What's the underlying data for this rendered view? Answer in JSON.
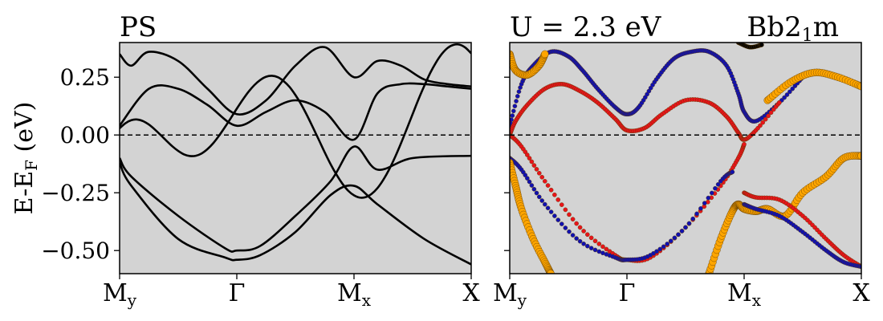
{
  "chart_data": [
    {
      "type": "line",
      "title": "PS",
      "ylabel": "E-E",
      "ylabel_sub": "F",
      "ylabel_unit": " (eV)",
      "ylim": [
        -0.6,
        0.4
      ],
      "xlim": [
        0,
        3
      ],
      "yticks": [
        0.25,
        0.0,
        -0.25,
        -0.5
      ],
      "ytick_labels": [
        "0.25",
        "0.00",
        "−0.25",
        "−0.50"
      ],
      "xticks": [
        {
          "x": 0,
          "main": "M",
          "sub": "y"
        },
        {
          "x": 1,
          "main": "Γ",
          "sub": ""
        },
        {
          "x": 2,
          "main": "M",
          "sub": "x"
        },
        {
          "x": 3,
          "main": "X",
          "sub": ""
        }
      ],
      "background": "#d3d3d3",
      "fermi_level": 0.0,
      "grid": false,
      "series_color": "#000000",
      "series": [
        {
          "x": [
            0,
            0.25,
            0.5,
            0.75,
            1.0,
            1.25,
            1.5,
            1.75,
            2.0,
            2.2,
            2.4,
            2.6,
            2.8,
            3.0
          ],
          "values": [
            0.04,
            0.2,
            0.2,
            0.13,
            0.04,
            0.1,
            0.15,
            0.1,
            -0.02,
            0.18,
            0.22,
            0.22,
            0.21,
            0.2
          ]
        },
        {
          "x": [
            0,
            0.1,
            0.25,
            0.5,
            0.75,
            1.0,
            1.25,
            1.5,
            1.75,
            2.0,
            2.2,
            2.4,
            2.6,
            2.8,
            3.0
          ],
          "values": [
            0.35,
            0.3,
            0.36,
            0.32,
            0.2,
            0.09,
            0.15,
            0.3,
            0.38,
            0.25,
            0.32,
            0.3,
            0.24,
            0.22,
            0.21
          ]
        },
        {
          "x": [
            0,
            0.1,
            0.5,
            0.9,
            1.0,
            1.2,
            1.5,
            1.8,
            2.0,
            2.2,
            2.5,
            3.0
          ],
          "values": [
            -0.1,
            -0.18,
            -0.35,
            -0.49,
            -0.5,
            -0.48,
            -0.35,
            -0.2,
            -0.05,
            -0.15,
            -0.1,
            -0.09
          ]
        },
        {
          "x": [
            0,
            0.1,
            0.5,
            0.9,
            1.0,
            1.2,
            1.5,
            1.8,
            2.0,
            2.2,
            2.6,
            3.0
          ],
          "values": [
            -0.12,
            -0.22,
            -0.45,
            -0.53,
            -0.54,
            -0.52,
            -0.42,
            -0.26,
            -0.22,
            -0.3,
            -0.45,
            -0.56
          ]
        },
        {
          "x": [
            0,
            0.05,
            0.1,
            0.15,
            0.2,
            0.25,
            0.3,
            0.35,
            0.4,
            0.45,
            0.5,
            0.55,
            0.6,
            0.65,
            0.7,
            0.75,
            0.8,
            0.85,
            0.9,
            0.95,
            1.0,
            1.05,
            1.1,
            1.15,
            1.2,
            1.25,
            1.3,
            1.35,
            1.4,
            1.45,
            1.5,
            1.55,
            1.6,
            1.65,
            1.7,
            1.75,
            1.8,
            1.85,
            1.9,
            1.95,
            2.0,
            2.05,
            2.1,
            2.15,
            2.2,
            2.25,
            2.3,
            2.35,
            2.4,
            2.45,
            2.5,
            2.55,
            2.6,
            2.65,
            2.7,
            2.75,
            2.8,
            2.85,
            2.9,
            2.95,
            3.0
          ],
          "values": [
            0.029,
            0.051,
            0.064,
            0.067,
            0.06,
            0.045,
            0.024,
            -0.0,
            -0.025,
            -0.049,
            -0.069,
            -0.084,
            -0.091,
            -0.09,
            -0.08,
            -0.061,
            -0.035,
            -0.002,
            0.035,
            0.074,
            0.114,
            0.152,
            0.187,
            0.216,
            0.238,
            0.252,
            0.256,
            0.25,
            0.233,
            0.208,
            0.173,
            0.132,
            0.084,
            0.032,
            -0.021,
            -0.075,
            -0.126,
            -0.171,
            -0.21,
            -0.241,
            -0.261,
            -0.271,
            -0.269,
            -0.255,
            -0.23,
            -0.194,
            -0.149,
            -0.096,
            -0.037,
            0.026,
            0.09,
            0.154,
            0.213,
            0.268,
            0.314,
            0.351,
            0.377,
            0.39,
            0.391,
            0.378,
            0.353
          ]
        }
      ]
    },
    {
      "type": "scatter",
      "title": "U = 2.3 eV",
      "title_right": "Bb2",
      "title_right_sub": "1",
      "title_right_tail": "m",
      "ylim": [
        -0.6,
        0.4
      ],
      "xlim": [
        0,
        3
      ],
      "xticks": [
        {
          "x": 0,
          "main": "M",
          "sub": "y"
        },
        {
          "x": 1,
          "main": "Γ",
          "sub": ""
        },
        {
          "x": 2,
          "main": "M",
          "sub": "x"
        },
        {
          "x": 3,
          "main": "X",
          "sub": ""
        }
      ],
      "background": "#d3d3d3",
      "fermi_level": 0.0,
      "grid": false,
      "colors": {
        "orange": "#ffa500",
        "red": "#e8141a",
        "blue": "#1010b0",
        "black": "#000000"
      },
      "series": [
        {
          "color": "blue",
          "x": [
            0.0,
            0.1,
            0.2,
            0.35,
            0.5,
            0.62,
            0.75,
            0.9,
            1.0,
            1.1,
            1.25,
            1.4,
            1.55,
            1.7,
            1.85,
            1.95,
            2.0,
            2.1,
            2.3,
            2.5
          ],
          "values": [
            0.04,
            0.22,
            0.3,
            0.36,
            0.34,
            0.28,
            0.2,
            0.12,
            0.09,
            0.12,
            0.24,
            0.33,
            0.36,
            0.36,
            0.3,
            0.18,
            0.1,
            0.06,
            0.14,
            0.25
          ]
        },
        {
          "color": "red",
          "x": [
            0.0,
            0.05,
            0.15,
            0.3,
            0.45,
            0.6,
            0.75,
            0.9,
            1.0,
            1.15,
            1.3,
            1.5,
            1.7,
            1.85,
            1.95,
            2.0,
            2.1,
            2.3
          ],
          "values": [
            0.0,
            0.06,
            0.13,
            0.2,
            0.22,
            0.19,
            0.14,
            0.07,
            0.02,
            0.03,
            0.09,
            0.15,
            0.14,
            0.08,
            0.01,
            -0.02,
            0.02,
            0.14
          ]
        },
        {
          "color": "red",
          "x": [
            0.0,
            0.1,
            0.3,
            0.6,
            0.9,
            1.0,
            1.2,
            1.5,
            1.8,
            1.95,
            2.0
          ],
          "values": [
            0.0,
            -0.05,
            -0.2,
            -0.4,
            -0.52,
            -0.54,
            -0.53,
            -0.4,
            -0.22,
            -0.1,
            -0.04
          ]
        },
        {
          "color": "blue",
          "x": [
            0.0,
            0.1,
            0.3,
            0.6,
            0.9,
            1.0,
            1.2,
            1.5,
            1.8,
            1.9
          ],
          "values": [
            -0.1,
            -0.15,
            -0.3,
            -0.46,
            -0.53,
            -0.54,
            -0.52,
            -0.4,
            -0.2,
            -0.16
          ]
        },
        {
          "color": "orange",
          "x": [
            0.0,
            0.05,
            0.1,
            0.2,
            0.3,
            0.35
          ],
          "values": [
            -0.12,
            -0.22,
            -0.32,
            -0.45,
            -0.55,
            -0.6
          ]
        },
        {
          "color": "orange",
          "x": [
            0.0,
            0.05,
            0.15,
            0.25,
            0.3
          ],
          "values": [
            0.35,
            0.28,
            0.26,
            0.3,
            0.35
          ]
        },
        {
          "color": "orange",
          "x": [
            1.7,
            1.8,
            1.9,
            1.95,
            2.0,
            2.1,
            2.2,
            2.35,
            2.5,
            2.7,
            2.85,
            3.0
          ],
          "values": [
            -0.6,
            -0.45,
            -0.33,
            -0.3,
            -0.32,
            -0.33,
            -0.32,
            -0.35,
            -0.25,
            -0.18,
            -0.1,
            -0.09
          ]
        },
        {
          "color": "red",
          "x": [
            2.0,
            2.1,
            2.3,
            2.5,
            2.7,
            2.85,
            3.0
          ],
          "values": [
            -0.25,
            -0.27,
            -0.28,
            -0.35,
            -0.45,
            -0.52,
            -0.57
          ]
        },
        {
          "color": "blue",
          "x": [
            2.0,
            2.1,
            2.3,
            2.5,
            2.7,
            2.85,
            3.0
          ],
          "values": [
            -0.3,
            -0.32,
            -0.35,
            -0.42,
            -0.5,
            -0.55,
            -0.57
          ]
        },
        {
          "color": "orange",
          "x": [
            2.2,
            2.4,
            2.6,
            2.8,
            3.0
          ],
          "values": [
            0.15,
            0.23,
            0.27,
            0.25,
            0.21
          ]
        },
        {
          "color": "black",
          "x": [
            1.95,
            2.05,
            2.15
          ],
          "values": [
            0.4,
            0.38,
            0.39
          ]
        }
      ]
    }
  ]
}
